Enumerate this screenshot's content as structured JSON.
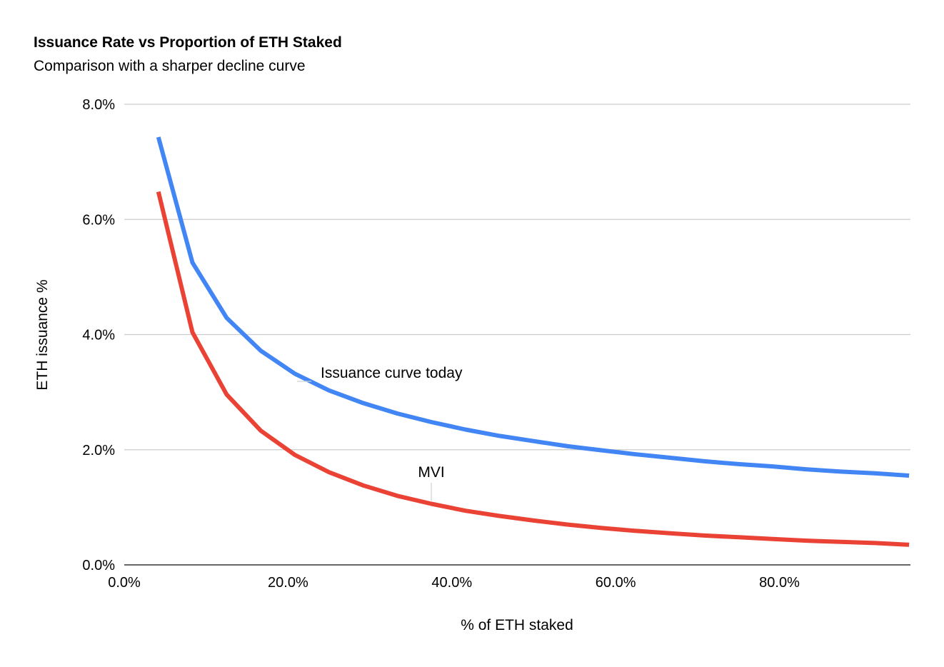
{
  "chart_data": {
    "type": "line",
    "title": "Issuance Rate vs Proportion of ETH Staked",
    "subtitle": "Comparison with a sharper decline curve",
    "xlabel": "% of ETH staked",
    "ylabel": "ETH issuance %",
    "xlim": [
      0,
      96
    ],
    "ylim": [
      0,
      8
    ],
    "x_ticks": [
      0,
      20,
      40,
      60,
      80
    ],
    "x_tick_labels": [
      "0.0%",
      "20.0%",
      "40.0%",
      "60.0%",
      "80.0%"
    ],
    "y_ticks": [
      0,
      2,
      4,
      6,
      8
    ],
    "y_tick_labels": [
      "0.0%",
      "2.0%",
      "4.0%",
      "6.0%",
      "8.0%"
    ],
    "grid": true,
    "legend": "none",
    "x": [
      4.17,
      8.33,
      12.5,
      16.67,
      20.83,
      25,
      29.17,
      33.33,
      37.5,
      41.67,
      45.83,
      50,
      54.17,
      58.33,
      62.5,
      66.67,
      70.83,
      75,
      79.17,
      83.33,
      87.5,
      91.67,
      95.83
    ],
    "series": [
      {
        "name": "Issuance curve today",
        "color": "#4285f4",
        "values": [
          7.43,
          5.25,
          4.29,
          3.72,
          3.32,
          3.03,
          2.81,
          2.63,
          2.48,
          2.35,
          2.24,
          2.15,
          2.06,
          1.99,
          1.92,
          1.86,
          1.8,
          1.75,
          1.71,
          1.66,
          1.62,
          1.59,
          1.55
        ]
      },
      {
        "name": "MVI",
        "color": "#ea4335",
        "values": [
          6.48,
          4.04,
          2.96,
          2.33,
          1.91,
          1.61,
          1.38,
          1.2,
          1.06,
          0.94,
          0.85,
          0.77,
          0.7,
          0.64,
          0.59,
          0.55,
          0.51,
          0.48,
          0.45,
          0.42,
          0.4,
          0.38,
          0.35
        ]
      }
    ],
    "annotations": [
      {
        "text": "Issuance curve today",
        "series": "Issuance curve today"
      },
      {
        "text": "MVI",
        "series": "MVI"
      }
    ]
  }
}
